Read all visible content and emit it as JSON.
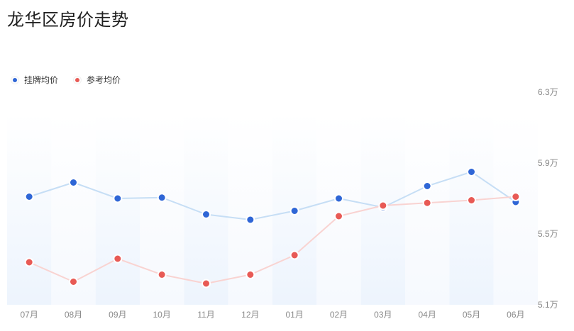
{
  "title": "龙华区房价走势",
  "colors": {
    "listing_point": "#2f66d6",
    "listing_line": "#c6def5",
    "reference_point": "#e85a55",
    "reference_line": "#f9d3d1"
  },
  "chart_data": {
    "type": "line",
    "title": "龙华区房价走势",
    "categories": [
      "07月",
      "08月",
      "09月",
      "10月",
      "11月",
      "12月",
      "01月",
      "02月",
      "03月",
      "04月",
      "05月",
      "06月"
    ],
    "series": [
      {
        "name": "挂牌均价",
        "values": [
          5.71,
          5.79,
          5.7,
          5.705,
          5.61,
          5.58,
          5.63,
          5.7,
          5.65,
          5.77,
          5.85,
          5.68
        ]
      },
      {
        "name": "参考均价",
        "values": [
          5.34,
          5.23,
          5.36,
          5.27,
          5.22,
          5.27,
          5.38,
          5.6,
          5.66,
          5.675,
          5.69,
          5.71
        ]
      }
    ],
    "y_ticks": [
      "6.3万",
      "5.9万",
      "5.5万",
      "5.1万"
    ],
    "ylim": [
      5.1,
      6.3
    ],
    "legend_position": "top-left",
    "grid": false
  }
}
